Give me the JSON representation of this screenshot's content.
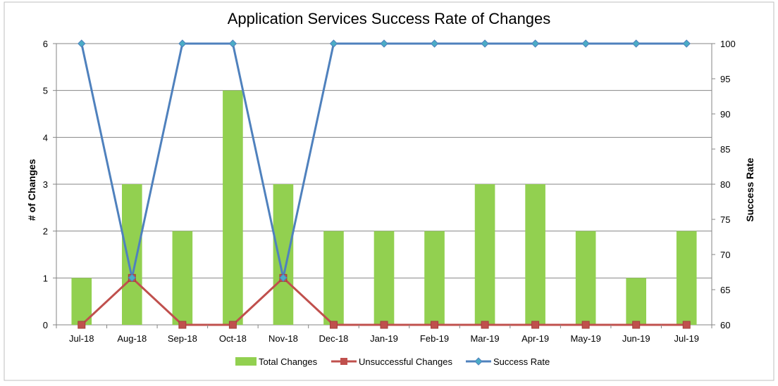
{
  "chart_data": {
    "type": "bar",
    "title": "Application Services Success Rate of Changes",
    "xlabel": "",
    "ylabel": "# of Changes",
    "y2label": "Success Rate",
    "ylim": [
      0,
      6
    ],
    "y2lim": [
      60,
      100
    ],
    "yticks": [
      "0",
      "1",
      "2",
      "3",
      "4",
      "5",
      "6"
    ],
    "y2ticks": [
      "60",
      "65",
      "70",
      "75",
      "80",
      "85",
      "90",
      "95",
      "100"
    ],
    "grid": true,
    "legend_position": "bottom",
    "categories": [
      "Jul-18",
      "Aug-18",
      "Sep-18",
      "Oct-18",
      "Nov-18",
      "Dec-18",
      "Jan-19",
      "Feb-19",
      "Mar-19",
      "Apr-19",
      "May-19",
      "Jun-19",
      "Jul-19"
    ],
    "series": [
      {
        "name": "Total Changes",
        "type": "bar",
        "axis": "left",
        "color": "#92d050",
        "values": [
          1,
          3,
          2,
          5,
          3,
          2,
          2,
          2,
          3,
          3,
          2,
          1,
          2
        ]
      },
      {
        "name": "Unsuccessful Changes",
        "type": "line",
        "axis": "left",
        "color": "#c0504d",
        "values": [
          0,
          1,
          0,
          0,
          1,
          0,
          0,
          0,
          0,
          0,
          0,
          0,
          0
        ]
      },
      {
        "name": "Success Rate",
        "type": "line",
        "axis": "right",
        "color": "#4f81bd",
        "values": [
          100,
          66.7,
          100,
          100,
          66.7,
          100,
          100,
          100,
          100,
          100,
          100,
          100,
          100
        ]
      }
    ]
  }
}
